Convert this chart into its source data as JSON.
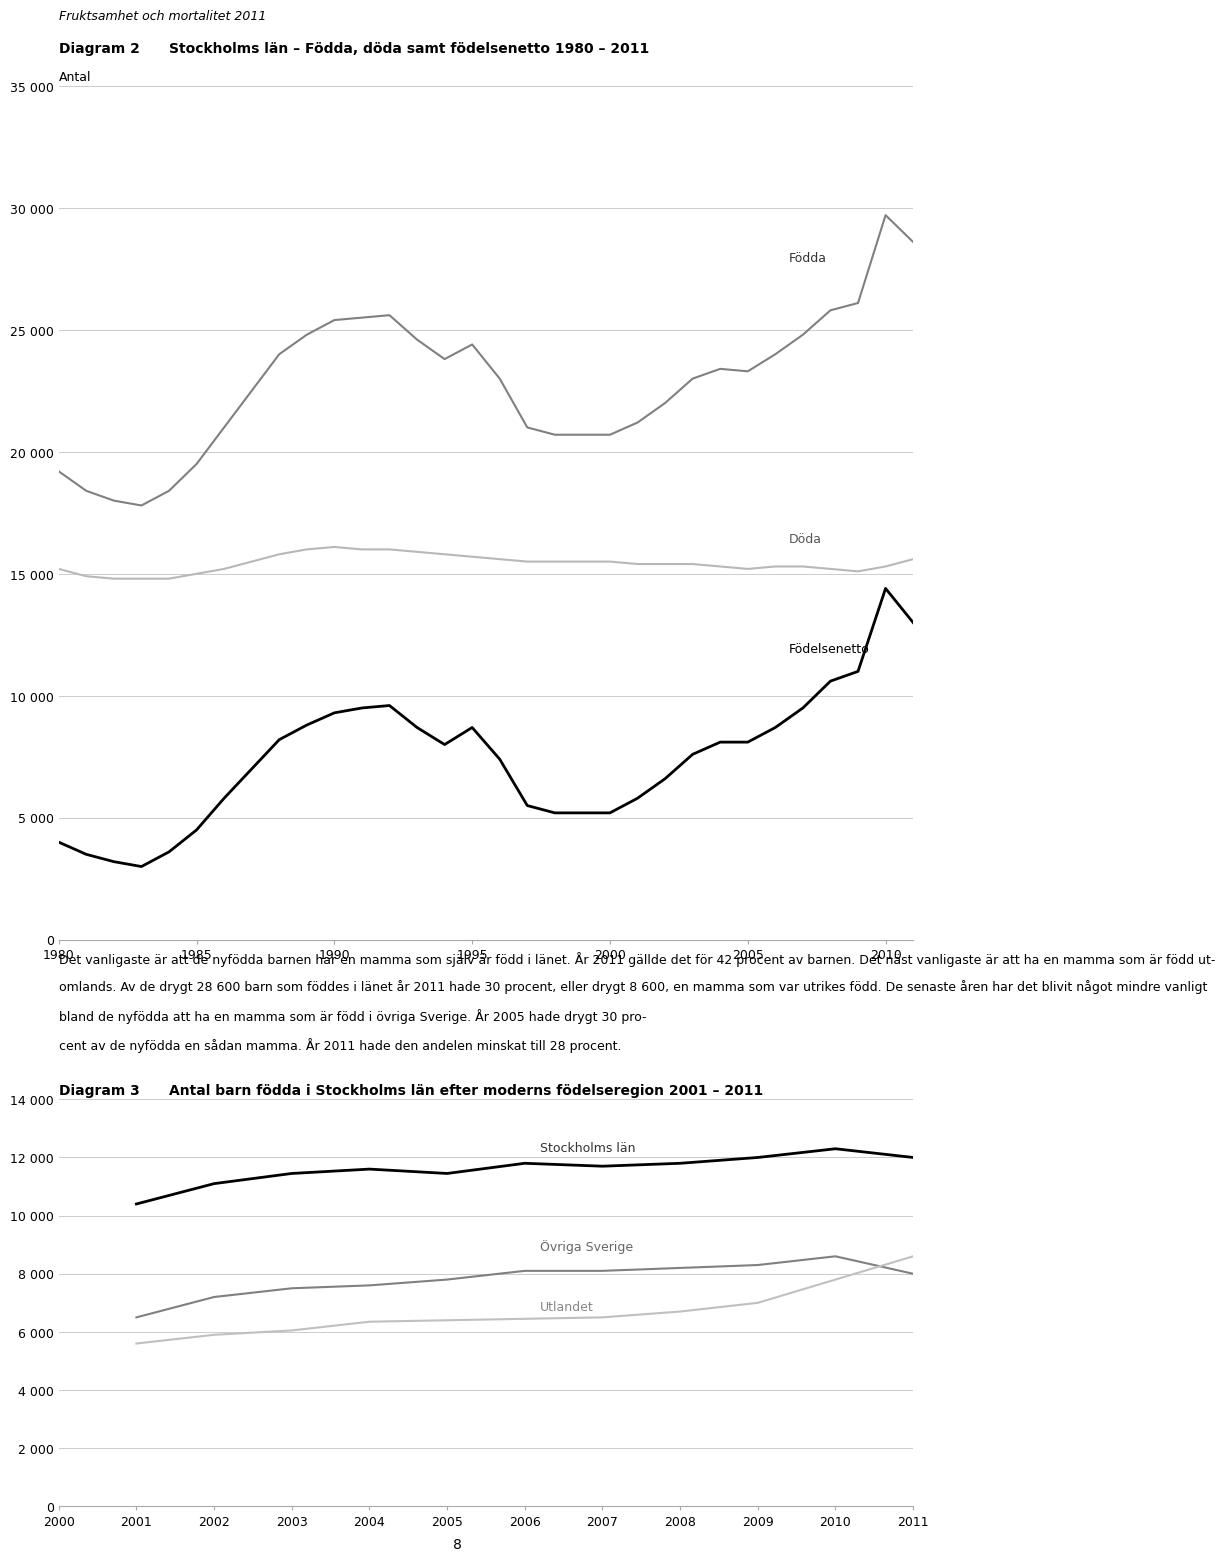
{
  "page_header": "Fruktsamhet och mortalitet 2011",
  "page_number": "8",
  "diag2_label": "Diagram 2",
  "diag2_title": "Stockholms län – Födda, döda samt födelsenetto 1980 – 2011",
  "diag2_ylabel": "Antal",
  "diag2_ylim": [
    0,
    35000
  ],
  "diag2_yticks": [
    0,
    5000,
    10000,
    15000,
    20000,
    25000,
    30000,
    35000
  ],
  "diag2_xlim": [
    1980,
    2011
  ],
  "diag2_xticks": [
    1980,
    1985,
    1990,
    1995,
    2000,
    2005,
    2010
  ],
  "fodda_years": [
    1980,
    1981,
    1982,
    1983,
    1984,
    1985,
    1986,
    1987,
    1988,
    1989,
    1990,
    1991,
    1992,
    1993,
    1994,
    1995,
    1996,
    1997,
    1998,
    1999,
    2000,
    2001,
    2002,
    2003,
    2004,
    2005,
    2006,
    2007,
    2008,
    2009,
    2010,
    2011
  ],
  "fodda_values": [
    19200,
    18400,
    18000,
    17800,
    18400,
    19500,
    21000,
    22500,
    24000,
    24800,
    25400,
    25500,
    25600,
    24600,
    23800,
    24400,
    23000,
    21000,
    20700,
    20700,
    20700,
    21200,
    22000,
    23000,
    23400,
    23300,
    24000,
    24800,
    25800,
    26100,
    29700,
    28600
  ],
  "doda_years": [
    1980,
    1981,
    1982,
    1983,
    1984,
    1985,
    1986,
    1987,
    1988,
    1989,
    1990,
    1991,
    1992,
    1993,
    1994,
    1995,
    1996,
    1997,
    1998,
    1999,
    2000,
    2001,
    2002,
    2003,
    2004,
    2005,
    2006,
    2007,
    2008,
    2009,
    2010,
    2011
  ],
  "doda_values": [
    15200,
    14900,
    14800,
    14800,
    14800,
    15000,
    15200,
    15500,
    15800,
    16000,
    16100,
    16000,
    16000,
    15900,
    15800,
    15700,
    15600,
    15500,
    15500,
    15500,
    15500,
    15400,
    15400,
    15400,
    15300,
    15200,
    15300,
    15300,
    15200,
    15100,
    15300,
    15600
  ],
  "netto_years": [
    1980,
    1981,
    1982,
    1983,
    1984,
    1985,
    1986,
    1987,
    1988,
    1989,
    1990,
    1991,
    1992,
    1993,
    1994,
    1995,
    1996,
    1997,
    1998,
    1999,
    2000,
    2001,
    2002,
    2003,
    2004,
    2005,
    2006,
    2007,
    2008,
    2009,
    2010,
    2011
  ],
  "netto_values": [
    4000,
    3500,
    3200,
    3000,
    3600,
    4500,
    5800,
    7000,
    8200,
    8800,
    9300,
    9500,
    9600,
    8700,
    8000,
    8700,
    7400,
    5500,
    5200,
    5200,
    5200,
    5800,
    6600,
    7600,
    8100,
    8100,
    8700,
    9500,
    10600,
    11000,
    14400,
    13000
  ],
  "fodda_label": "Födda",
  "doda_label": "Döda",
  "netto_label": "Födelsenetto",
  "fodda_color": "#808080",
  "doda_color": "#b8b8b8",
  "netto_color": "#000000",
  "diag2_text_lines": [
    "Det vanligaste är att de nyfödda barnen har en mamma som själv är född i länet. År 2011 gällde det för 42 procent av barnen. Det näst vanligaste är att ha en mamma som är född ut-",
    "omlands. Av de drygt 28 600 barn som föddes i länet år 2011 hade 30 procent, eller drygt 8 600, en mamma som var utrikes född. De senaste åren har det blivit något mindre vanligt",
    "bland de nyfödda att ha en mamma som är född i övriga Sverige. År 2005 hade drygt 30 pro-",
    "cent av de nyfödda en sådan mamma. År 2011 hade den andelen minskat till 28 procent."
  ],
  "diag3_label": "Diagram 3",
  "diag3_title": "Antal barn födda i Stockholms län efter moderns födelseregion 2001 – 2011",
  "diag3_ylim": [
    0,
    14000
  ],
  "diag3_yticks": [
    0,
    2000,
    4000,
    6000,
    8000,
    10000,
    12000,
    14000
  ],
  "diag3_xlim": [
    2000,
    2011
  ],
  "diag3_xticks": [
    2000,
    2001,
    2002,
    2003,
    2004,
    2005,
    2006,
    2007,
    2008,
    2009,
    2010,
    2011
  ],
  "sthlm_years": [
    2001,
    2002,
    2003,
    2004,
    2005,
    2006,
    2007,
    2008,
    2009,
    2010,
    2011
  ],
  "sthlm_values": [
    10400,
    11100,
    11450,
    11600,
    11450,
    11800,
    11700,
    11800,
    12000,
    12300,
    12000
  ],
  "ovriga_years": [
    2001,
    2002,
    2003,
    2004,
    2005,
    2006,
    2007,
    2008,
    2009,
    2010,
    2011
  ],
  "ovriga_values": [
    6500,
    7200,
    7500,
    7600,
    7800,
    8100,
    8100,
    8200,
    8300,
    8600,
    8000
  ],
  "utlandet_years": [
    2001,
    2002,
    2003,
    2004,
    2005,
    2006,
    2007,
    2008,
    2009,
    2010,
    2011
  ],
  "utlandet_values": [
    5600,
    5900,
    6050,
    6350,
    6400,
    6450,
    6500,
    6700,
    7000,
    7800,
    8600
  ],
  "sthlm_label": "Stockholms län",
  "ovriga_label": "Övriga Sverige",
  "utlandet_label": "Utlandet",
  "sthlm_color": "#000000",
  "ovriga_color": "#808080",
  "utlandet_color": "#c0c0c0"
}
